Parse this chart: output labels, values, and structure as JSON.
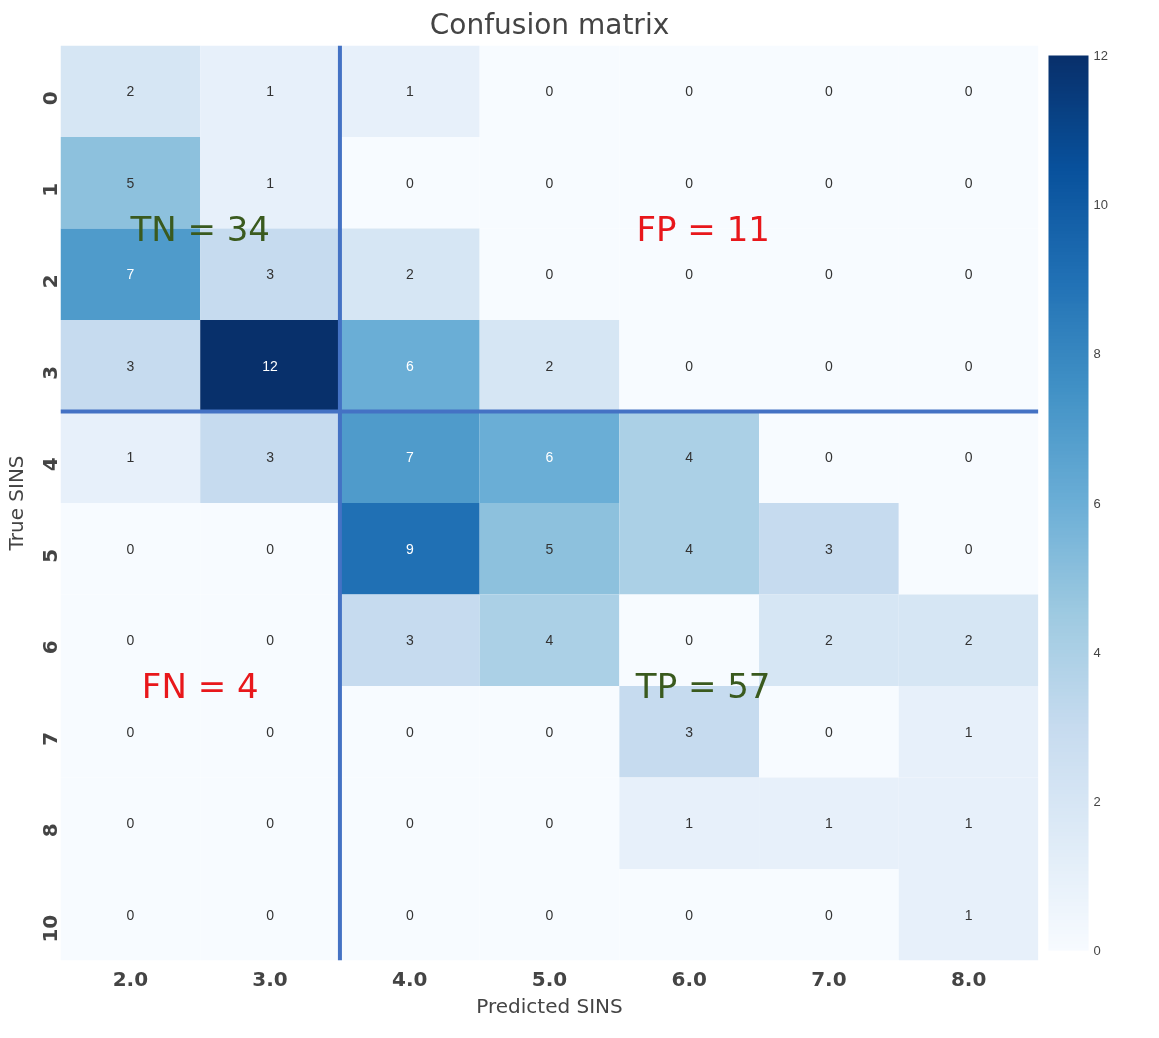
{
  "chart_data": {
    "type": "heatmap",
    "title": "Confusion matrix",
    "xlabel": "Predicted SINS",
    "ylabel": "True SINS",
    "categories": [
      "2.0",
      "3.0",
      "4.0",
      "5.0",
      "6.0",
      "7.0",
      "8.0"
    ],
    "y_categories": [
      "0",
      "1",
      "2",
      "3",
      "4",
      "5",
      "6",
      "7",
      "8",
      "10"
    ],
    "cells": [
      [
        2,
        1,
        1,
        0,
        0,
        0,
        0
      ],
      [
        5,
        1,
        0,
        0,
        0,
        0,
        0
      ],
      [
        7,
        3,
        2,
        0,
        0,
        0,
        0
      ],
      [
        3,
        12,
        6,
        2,
        0,
        0,
        0
      ],
      [
        1,
        3,
        7,
        6,
        4,
        0,
        0
      ],
      [
        0,
        0,
        9,
        5,
        4,
        3,
        0
      ],
      [
        0,
        0,
        3,
        4,
        0,
        2,
        2
      ],
      [
        0,
        0,
        0,
        0,
        3,
        0,
        1
      ],
      [
        0,
        0,
        0,
        0,
        1,
        1,
        1
      ],
      [
        0,
        0,
        0,
        0,
        0,
        0,
        1
      ]
    ],
    "clim": [
      0,
      12
    ],
    "cticks": [
      0,
      2,
      4,
      6,
      8,
      10,
      12
    ],
    "data_labels": true,
    "grid": false,
    "annotations": [
      "TN = 34",
      "FP = 11",
      "FN = 4",
      "TP = 57"
    ]
  }
}
